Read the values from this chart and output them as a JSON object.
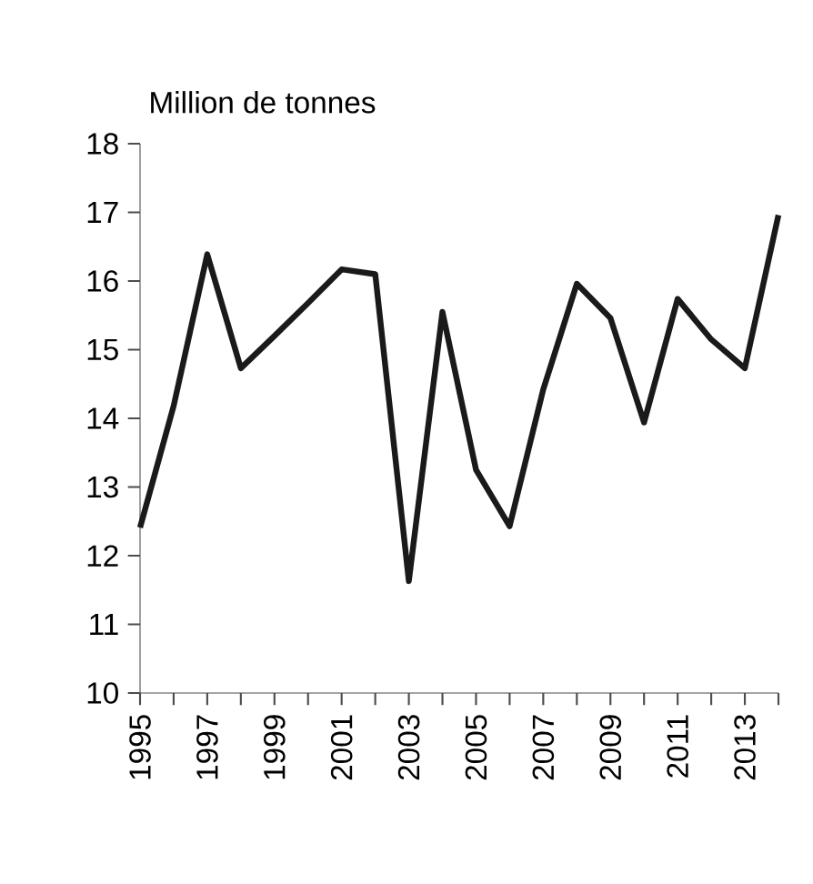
{
  "chart_data": {
    "type": "line",
    "ylabel": "Million de tonnes",
    "x": [
      1995,
      1996,
      1997,
      1998,
      1999,
      2000,
      2001,
      2002,
      2003,
      2004,
      2005,
      2006,
      2007,
      2008,
      2009,
      2010,
      2011,
      2012,
      2013,
      2014
    ],
    "series": [
      {
        "color": "#1a1a1a",
        "values": [
          12.41,
          14.18,
          16.39,
          14.73,
          15.2,
          15.68,
          16.17,
          16.1,
          11.63,
          15.55,
          13.25,
          12.43,
          14.42,
          15.96,
          15.46,
          13.94,
          15.74,
          15.15,
          14.73,
          16.96
        ]
      }
    ],
    "xlim": [
      1995,
      2014
    ],
    "xticks": [
      1995,
      {
        "value": 1996,
        "label": null
      },
      1997,
      {
        "value": 1998,
        "label": null
      },
      1999,
      {
        "value": 2000,
        "label": null
      },
      2001,
      {
        "value": 2002,
        "label": null
      },
      2003,
      {
        "value": 2004,
        "label": null
      },
      2005,
      {
        "value": 2006,
        "label": null
      },
      2007,
      {
        "value": 2008,
        "label": null
      },
      2009,
      {
        "value": 2010,
        "label": null
      },
      2011,
      {
        "value": 2012,
        "label": null
      },
      2013,
      {
        "value": 2014,
        "label": null
      }
    ],
    "ylim": [
      10,
      18
    ],
    "yticks": [
      10,
      11,
      12,
      13,
      14,
      15,
      16,
      17,
      18
    ],
    "line_style": "solid"
  }
}
